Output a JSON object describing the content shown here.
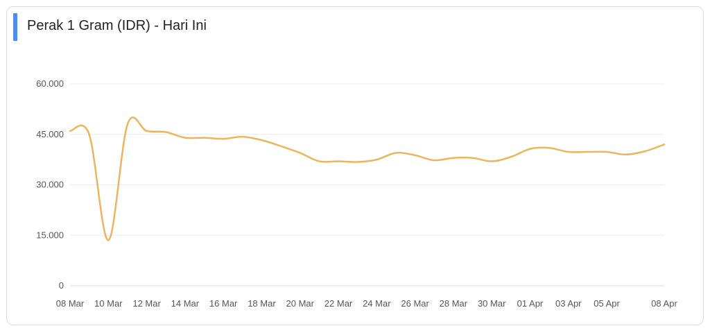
{
  "header": {
    "title": "Perak 1 Gram (IDR) - Hari Ini",
    "accent_color": "#4a8ef5"
  },
  "chart_data": {
    "type": "line",
    "title": "Perak 1 Gram (IDR) - Hari Ini",
    "xlabel": "",
    "ylabel": "",
    "ylim": [
      0,
      60000
    ],
    "grid": true,
    "line_color": "#ecb45c",
    "y_ticks": [
      {
        "value": 0,
        "label": "0"
      },
      {
        "value": 15000,
        "label": "15.000"
      },
      {
        "value": 30000,
        "label": "30.000"
      },
      {
        "value": 45000,
        "label": "45.000"
      },
      {
        "value": 60000,
        "label": "60.000"
      }
    ],
    "x_ticks": [
      {
        "day": 0,
        "label": "08 Mar"
      },
      {
        "day": 2,
        "label": "10 Mar"
      },
      {
        "day": 4,
        "label": "12 Mar"
      },
      {
        "day": 6,
        "label": "14 Mar"
      },
      {
        "day": 8,
        "label": "16 Mar"
      },
      {
        "day": 10,
        "label": "18 Mar"
      },
      {
        "day": 12,
        "label": "20 Mar"
      },
      {
        "day": 14,
        "label": "22 Mar"
      },
      {
        "day": 16,
        "label": "24 Mar"
      },
      {
        "day": 18,
        "label": "26 Mar"
      },
      {
        "day": 20,
        "label": "28 Mar"
      },
      {
        "day": 22,
        "label": "30 Mar"
      },
      {
        "day": 24,
        "label": "01 Apr"
      },
      {
        "day": 26,
        "label": "03 Apr"
      },
      {
        "day": 28,
        "label": "05 Apr"
      },
      {
        "day": 31,
        "label": "08 Apr"
      }
    ],
    "series": [
      {
        "points": [
          {
            "day": 0,
            "value": 46000
          },
          {
            "day": 1,
            "value": 45000
          },
          {
            "day": 2,
            "value": 13500
          },
          {
            "day": 3,
            "value": 48000
          },
          {
            "day": 4,
            "value": 46000
          },
          {
            "day": 5,
            "value": 45700
          },
          {
            "day": 6,
            "value": 44000
          },
          {
            "day": 7,
            "value": 44000
          },
          {
            "day": 8,
            "value": 43700
          },
          {
            "day": 9,
            "value": 44300
          },
          {
            "day": 10,
            "value": 43300
          },
          {
            "day": 11,
            "value": 41500
          },
          {
            "day": 12,
            "value": 39500
          },
          {
            "day": 13,
            "value": 37000
          },
          {
            "day": 14,
            "value": 37000
          },
          {
            "day": 15,
            "value": 36800
          },
          {
            "day": 16,
            "value": 37500
          },
          {
            "day": 17,
            "value": 39500
          },
          {
            "day": 18,
            "value": 38800
          },
          {
            "day": 19,
            "value": 37300
          },
          {
            "day": 20,
            "value": 38000
          },
          {
            "day": 21,
            "value": 38000
          },
          {
            "day": 22,
            "value": 37000
          },
          {
            "day": 23,
            "value": 38300
          },
          {
            "day": 24,
            "value": 40700
          },
          {
            "day": 25,
            "value": 41000
          },
          {
            "day": 26,
            "value": 39800
          },
          {
            "day": 27,
            "value": 39800
          },
          {
            "day": 28,
            "value": 39800
          },
          {
            "day": 29,
            "value": 39000
          },
          {
            "day": 30,
            "value": 40000
          },
          {
            "day": 31,
            "value": 42000
          }
        ]
      }
    ]
  }
}
